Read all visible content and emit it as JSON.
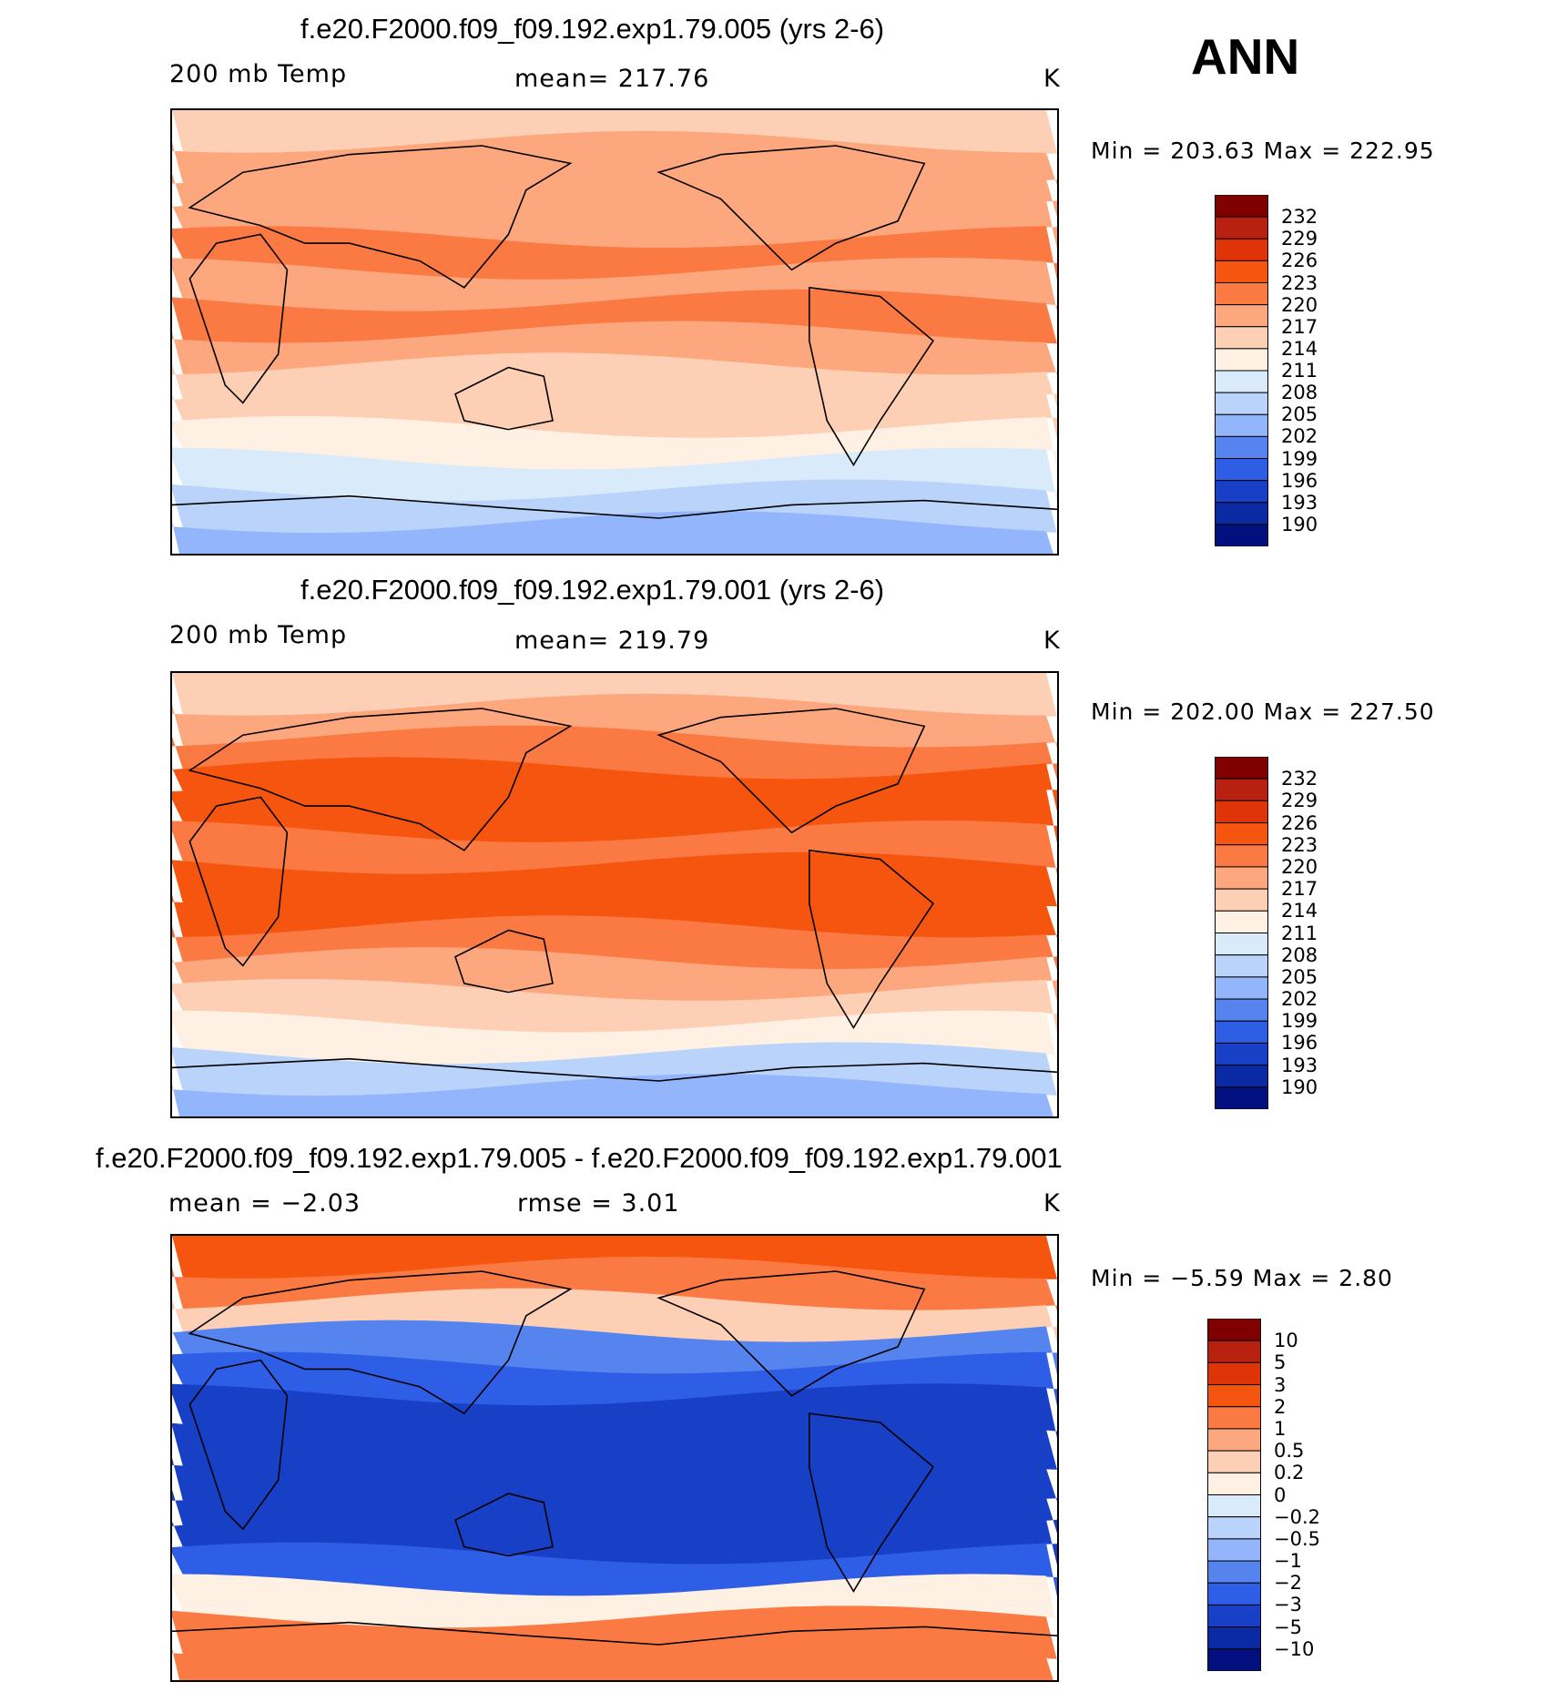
{
  "season_label": "ANN",
  "chart_data": [
    {
      "type": "heatmap",
      "title": "f.e20.F2000.f09_f09.192.exp1.79.005 (yrs 2-6)",
      "left_label": "200 mb Temp",
      "center_label": "mean= 217.76",
      "units": "K",
      "stats": "Min = 203.63 Max = 222.95",
      "colorbar": {
        "labels": [
          "232",
          "229",
          "226",
          "223",
          "220",
          "217",
          "214",
          "211",
          "208",
          "205",
          "202",
          "199",
          "196",
          "193",
          "190"
        ],
        "colors": [
          "#800000",
          "#b8210f",
          "#df3407",
          "#f5550f",
          "#fb7a43",
          "#fca77d",
          "#fdd0b6",
          "#fef0e2",
          "#d9eafb",
          "#b9d3fb",
          "#93b5fb",
          "#5684ef",
          "#2e5de6",
          "#1740c6",
          "#0a2aa3",
          "#020f7e"
        ]
      },
      "bands": [
        "#fdd0b6",
        "#fca77d",
        "#fca77d",
        "#fca77d",
        "#fb7a43",
        "#fca77d",
        "#fb7a43",
        "#fca77d",
        "#fdd0b6",
        "#fdd0b6",
        "#fef0e2",
        "#d9eafb",
        "#b9d3fb",
        "#93b5fb"
      ]
    },
    {
      "type": "heatmap",
      "title": "f.e20.F2000.f09_f09.192.exp1.79.001 (yrs 2-6)",
      "left_label": "200 mb Temp",
      "center_label": "mean= 219.79",
      "units": "K",
      "stats": "Min = 202.00 Max = 227.50",
      "colorbar": {
        "labels": [
          "232",
          "229",
          "226",
          "223",
          "220",
          "217",
          "214",
          "211",
          "208",
          "205",
          "202",
          "199",
          "196",
          "193",
          "190"
        ],
        "colors": [
          "#800000",
          "#b8210f",
          "#df3407",
          "#f5550f",
          "#fb7a43",
          "#fca77d",
          "#fdd0b6",
          "#fef0e2",
          "#d9eafb",
          "#b9d3fb",
          "#93b5fb",
          "#5684ef",
          "#2e5de6",
          "#1740c6",
          "#0a2aa3",
          "#020f7e"
        ]
      },
      "bands": [
        "#fdd0b6",
        "#fca77d",
        "#fb7a43",
        "#f5550f",
        "#f5550f",
        "#fb7a43",
        "#f5550f",
        "#f5550f",
        "#fb7a43",
        "#fca77d",
        "#fdd0b6",
        "#fef0e2",
        "#b9d3fb",
        "#93b5fb"
      ]
    },
    {
      "type": "heatmap",
      "title": "f.e20.F2000.f09_f09.192.exp1.79.005 - f.e20.F2000.f09_f09.192.exp1.79.001",
      "left_label": "mean =   −2.03",
      "center_label": "rmse =     3.01",
      "units": "K",
      "stats": "Min =   −5.59 Max =     2.80",
      "colorbar": {
        "labels": [
          "10",
          "5",
          "3",
          "2",
          "1",
          "0.5",
          "0.2",
          "0",
          "−0.2",
          "−0.5",
          "−1",
          "−2",
          "−3",
          "−5",
          "−10"
        ],
        "colors": [
          "#800000",
          "#b8210f",
          "#df3407",
          "#f5550f",
          "#fb7a43",
          "#fca77d",
          "#fdd0b6",
          "#fef0e2",
          "#d9eafb",
          "#b9d3fb",
          "#93b5fb",
          "#5684ef",
          "#2e5de6",
          "#1740c6",
          "#0a2aa3",
          "#020f7e"
        ]
      },
      "bands": [
        "#f5550f",
        "#fb7a43",
        "#fdd0b6",
        "#5684ef",
        "#2e5de6",
        "#1740c6",
        "#1740c6",
        "#1740c6",
        "#1740c6",
        "#1740c6",
        "#2e5de6",
        "#fef0e2",
        "#fb7a43",
        "#fb7a43"
      ]
    }
  ]
}
